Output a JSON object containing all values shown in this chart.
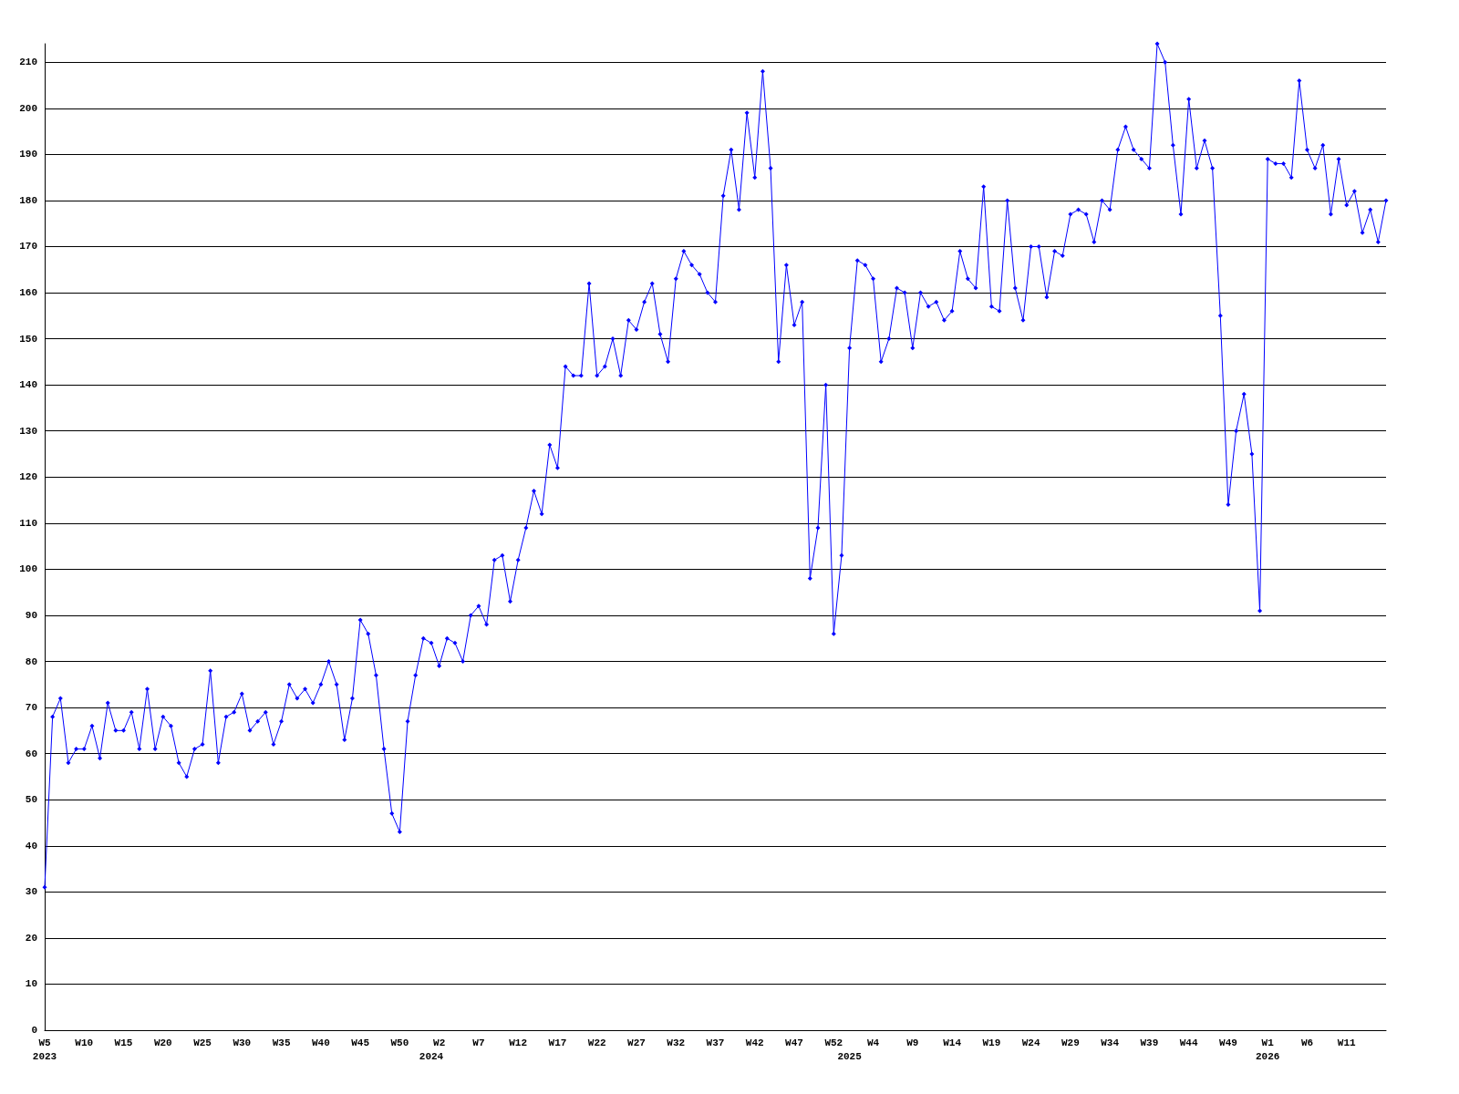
{
  "chart_data": {
    "type": "line",
    "categories": [
      "W5\n2023",
      null,
      null,
      null,
      null,
      "W10",
      null,
      null,
      null,
      null,
      "W15",
      null,
      null,
      null,
      null,
      "W20",
      null,
      null,
      null,
      null,
      "W25",
      null,
      null,
      null,
      null,
      "W30",
      null,
      null,
      null,
      null,
      "W35",
      null,
      null,
      null,
      null,
      "W40",
      null,
      null,
      null,
      null,
      "W45",
      null,
      null,
      null,
      null,
      "W50",
      null,
      null,
      null,
      "\n2024",
      "W2",
      null,
      null,
      null,
      null,
      "W7",
      null,
      null,
      null,
      null,
      "W12",
      null,
      null,
      null,
      null,
      "W17",
      null,
      null,
      null,
      null,
      "W22",
      null,
      null,
      null,
      null,
      "W27",
      null,
      null,
      null,
      null,
      "W32",
      null,
      null,
      null,
      null,
      "W37",
      null,
      null,
      null,
      null,
      "W42",
      null,
      null,
      null,
      null,
      "W47",
      null,
      null,
      null,
      null,
      "W52",
      null,
      "\n2025",
      null,
      null,
      "W4",
      null,
      null,
      null,
      null,
      "W9",
      null,
      null,
      null,
      null,
      "W14",
      null,
      null,
      null,
      null,
      "W19",
      null,
      null,
      null,
      null,
      "W24",
      null,
      null,
      null,
      null,
      "W29",
      null,
      null,
      null,
      null,
      "W34",
      null,
      null,
      null,
      null,
      "W39",
      null,
      null,
      null,
      null,
      "W44",
      null,
      null,
      null,
      null,
      "W49",
      null,
      null,
      null,
      null,
      "W1\n2026",
      null,
      null,
      null,
      null,
      "W6",
      null,
      null,
      null,
      null,
      "W11",
      null,
      null,
      null,
      null,
      null
    ],
    "series": [
      {
        "color": "#0000ff",
        "values": [
          31,
          68,
          72,
          58,
          61,
          61,
          66,
          59,
          71,
          65,
          65,
          69,
          61,
          74,
          61,
          68,
          66,
          58,
          55,
          61,
          62,
          78,
          58,
          68,
          69,
          73,
          65,
          67,
          69,
          62,
          67,
          75,
          72,
          74,
          71,
          75,
          80,
          75,
          63,
          72,
          89,
          86,
          77,
          61,
          47,
          43,
          67,
          77,
          85,
          84,
          79,
          85,
          84,
          80,
          90,
          92,
          88,
          102,
          103,
          93,
          102,
          109,
          117,
          112,
          127,
          122,
          144,
          142,
          142,
          162,
          142,
          144,
          150,
          142,
          154,
          152,
          158,
          162,
          151,
          145,
          163,
          169,
          166,
          164,
          160,
          158,
          181,
          191,
          178,
          199,
          185,
          208,
          187,
          145,
          166,
          153,
          158,
          98,
          109,
          140,
          86,
          103,
          148,
          167,
          166,
          163,
          145,
          150,
          161,
          160,
          148,
          160,
          157,
          158,
          154,
          156,
          169,
          163,
          161,
          183,
          157,
          156,
          180,
          161,
          154,
          170,
          170,
          159,
          169,
          168,
          177,
          178,
          177,
          171,
          180,
          178,
          191,
          196,
          191,
          189,
          187,
          214,
          210,
          192,
          177,
          202,
          187,
          193,
          187,
          155,
          114,
          130,
          138,
          125,
          91,
          189,
          188,
          188,
          185,
          206,
          191,
          187,
          192,
          177,
          189,
          179,
          182,
          173,
          178,
          171,
          180
        ]
      }
    ],
    "ylim": [
      0,
      214
    ],
    "yticks": [
      0,
      10,
      20,
      30,
      40,
      50,
      60,
      70,
      80,
      90,
      100,
      110,
      120,
      130,
      140,
      150,
      160,
      170,
      180,
      190,
      200,
      210
    ],
    "grid": "y",
    "marker": "diamond",
    "line_style": "solid"
  }
}
